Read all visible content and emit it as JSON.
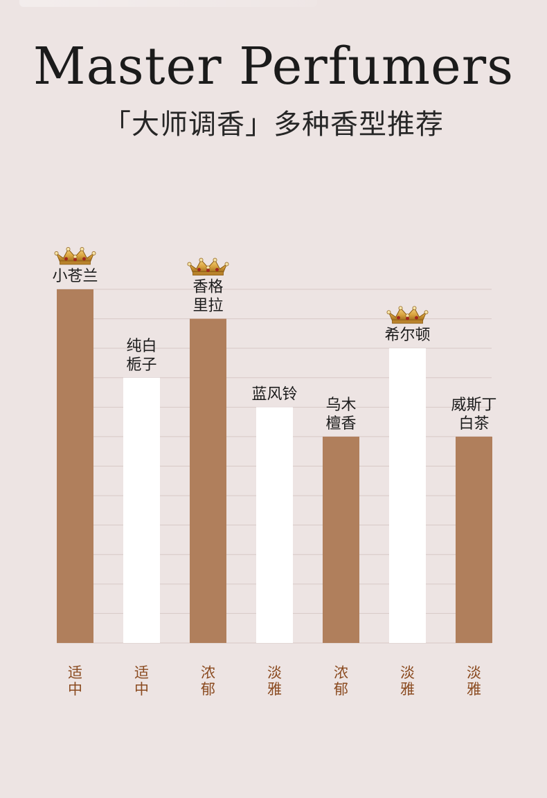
{
  "page": {
    "title": "Master Perfumers",
    "subtitle": "「大师调香」多种香型推荐"
  },
  "colors": {
    "background": "#ede4e3",
    "bar_strong": "#b07f5c",
    "bar_light": "#ffffff",
    "axis_text": "#8a4a1f",
    "label_text": "#1a1a1a",
    "gridline": "#d7c8c6",
    "crown": "#d8a23e"
  },
  "chart_data": {
    "type": "bar",
    "title": "",
    "xlabel": "",
    "ylabel": "",
    "ylim": [
      0,
      12
    ],
    "grid": true,
    "bars": [
      {
        "name": "小苍兰",
        "name_lines": [
          "小苍兰"
        ],
        "value": 12,
        "category": "适中",
        "category_lines": [
          "适",
          "中"
        ],
        "fill": "strong",
        "crown": true
      },
      {
        "name": "纯白栀子",
        "name_lines": [
          "纯白",
          "栀子"
        ],
        "value": 9,
        "category": "适中",
        "category_lines": [
          "适",
          "中"
        ],
        "fill": "light",
        "crown": false
      },
      {
        "name": "香格里拉",
        "name_lines": [
          "香格",
          "里拉"
        ],
        "value": 11,
        "category": "浓郁",
        "category_lines": [
          "浓",
          "郁"
        ],
        "fill": "strong",
        "crown": true
      },
      {
        "name": "蓝风铃",
        "name_lines": [
          "蓝风铃"
        ],
        "value": 8,
        "category": "淡雅",
        "category_lines": [
          "淡",
          "雅"
        ],
        "fill": "light",
        "crown": false
      },
      {
        "name": "乌木檀香",
        "name_lines": [
          "乌木",
          "檀香"
        ],
        "value": 7,
        "category": "浓郁",
        "category_lines": [
          "浓",
          "郁"
        ],
        "fill": "strong",
        "crown": false
      },
      {
        "name": "希尔顿",
        "name_lines": [
          "希尔顿"
        ],
        "value": 10,
        "category": "淡雅",
        "category_lines": [
          "淡",
          "雅"
        ],
        "fill": "light",
        "crown": true
      },
      {
        "name": "威斯丁白茶",
        "name_lines": [
          "威斯丁",
          "白茶"
        ],
        "value": 7,
        "category": "淡雅",
        "category_lines": [
          "淡",
          "雅"
        ],
        "fill": "strong",
        "crown": false
      }
    ]
  },
  "icons": {
    "crown": "crown-icon"
  }
}
